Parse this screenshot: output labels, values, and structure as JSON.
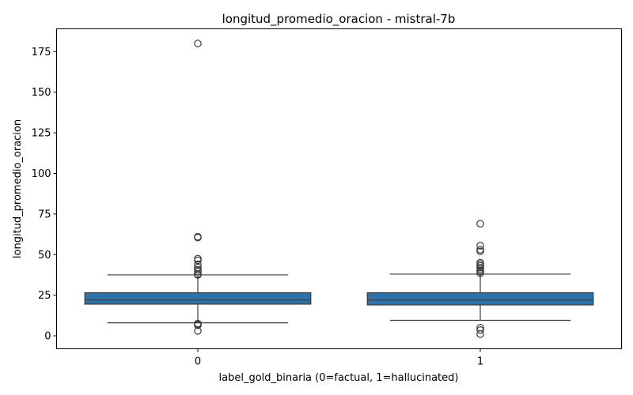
{
  "chart_data": {
    "type": "box",
    "title": "longitud_promedio_oracion - mistral-7b",
    "xlabel": "label_gold_binaria (0=factual, 1=hallucinated)",
    "ylabel": "longitud_promedio_oracion",
    "ylim": [
      -8,
      189
    ],
    "yticks": [
      0,
      25,
      50,
      75,
      100,
      125,
      150,
      175
    ],
    "grid": false,
    "box_color": "#2f72a8",
    "line_color": "#3d3d3d",
    "categories": [
      "0",
      "1"
    ],
    "boxes": [
      {
        "category": "0",
        "whisker_low": 8,
        "q1": 19.5,
        "median": 22,
        "q3": 26.5,
        "whisker_high": 37.5,
        "outliers": [
          180,
          61,
          60.5,
          47.5,
          46.5,
          44,
          42,
          40.5,
          39.5,
          38,
          37.5,
          7.5,
          7,
          6.5,
          3
        ]
      },
      {
        "category": "1",
        "whisker_low": 9.5,
        "q1": 19,
        "median": 22,
        "q3": 26.5,
        "whisker_high": 38,
        "outliers": [
          69,
          55.5,
          53,
          52,
          45,
          44,
          43,
          42,
          41,
          40,
          39.5,
          38.5,
          5,
          3.5,
          1
        ]
      }
    ]
  }
}
